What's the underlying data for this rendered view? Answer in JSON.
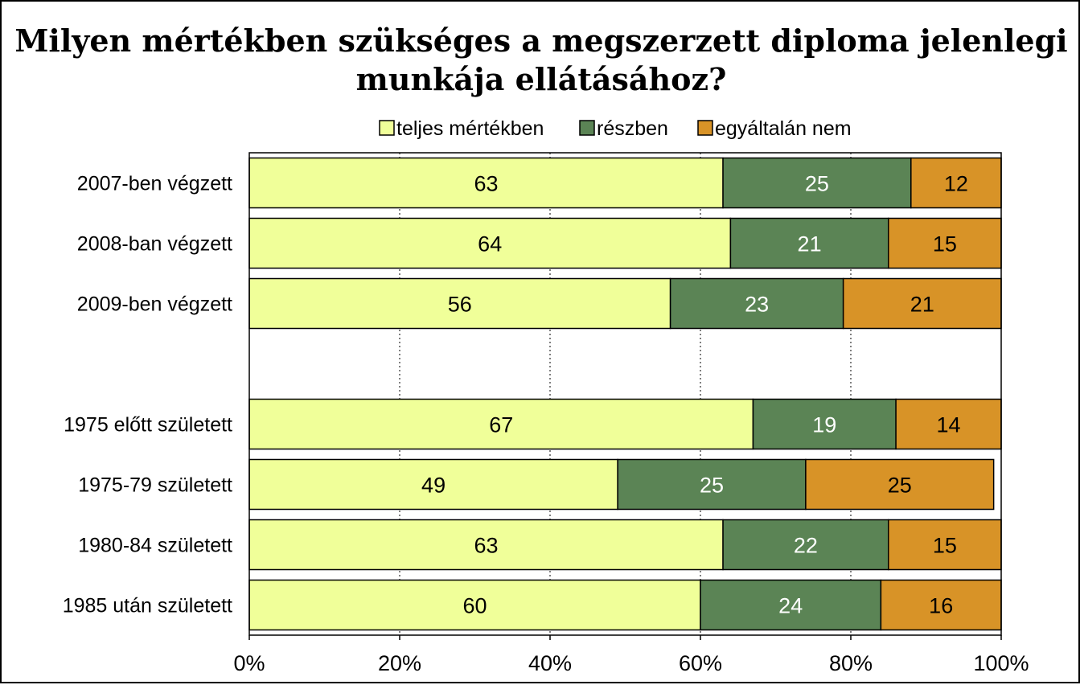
{
  "chart_data": {
    "type": "bar",
    "orientation": "horizontal",
    "stacked": "percent",
    "title_lines": [
      "Milyen mértékben szükséges a megszerzett diploma jelenlegi",
      "munkája ellátásához?"
    ],
    "categories": [
      "2007-ben végzett",
      "2008-ban végzett",
      "2009-ben végzett",
      "",
      "1975 előtt született",
      "1975-79 született",
      "1980-84 született",
      "1985 után született"
    ],
    "series": [
      {
        "name": "teljes mértékben",
        "color": "#f0ff99",
        "label_color": "#000000",
        "values": [
          63,
          64,
          56,
          null,
          67,
          49,
          63,
          60
        ]
      },
      {
        "name": "részben",
        "color": "#5b8455",
        "label_color": "#ffffff",
        "values": [
          25,
          21,
          23,
          null,
          19,
          25,
          22,
          24
        ]
      },
      {
        "name": "egyáltalán nem",
        "color": "#d89327",
        "label_color": "#000000",
        "values": [
          12,
          15,
          21,
          null,
          14,
          25,
          15,
          16
        ]
      }
    ],
    "x_ticks": [
      "0%",
      "20%",
      "40%",
      "60%",
      "80%",
      "100%"
    ],
    "xlim": [
      0,
      100
    ],
    "grid": "vertical dotted",
    "legend_position": "top"
  }
}
